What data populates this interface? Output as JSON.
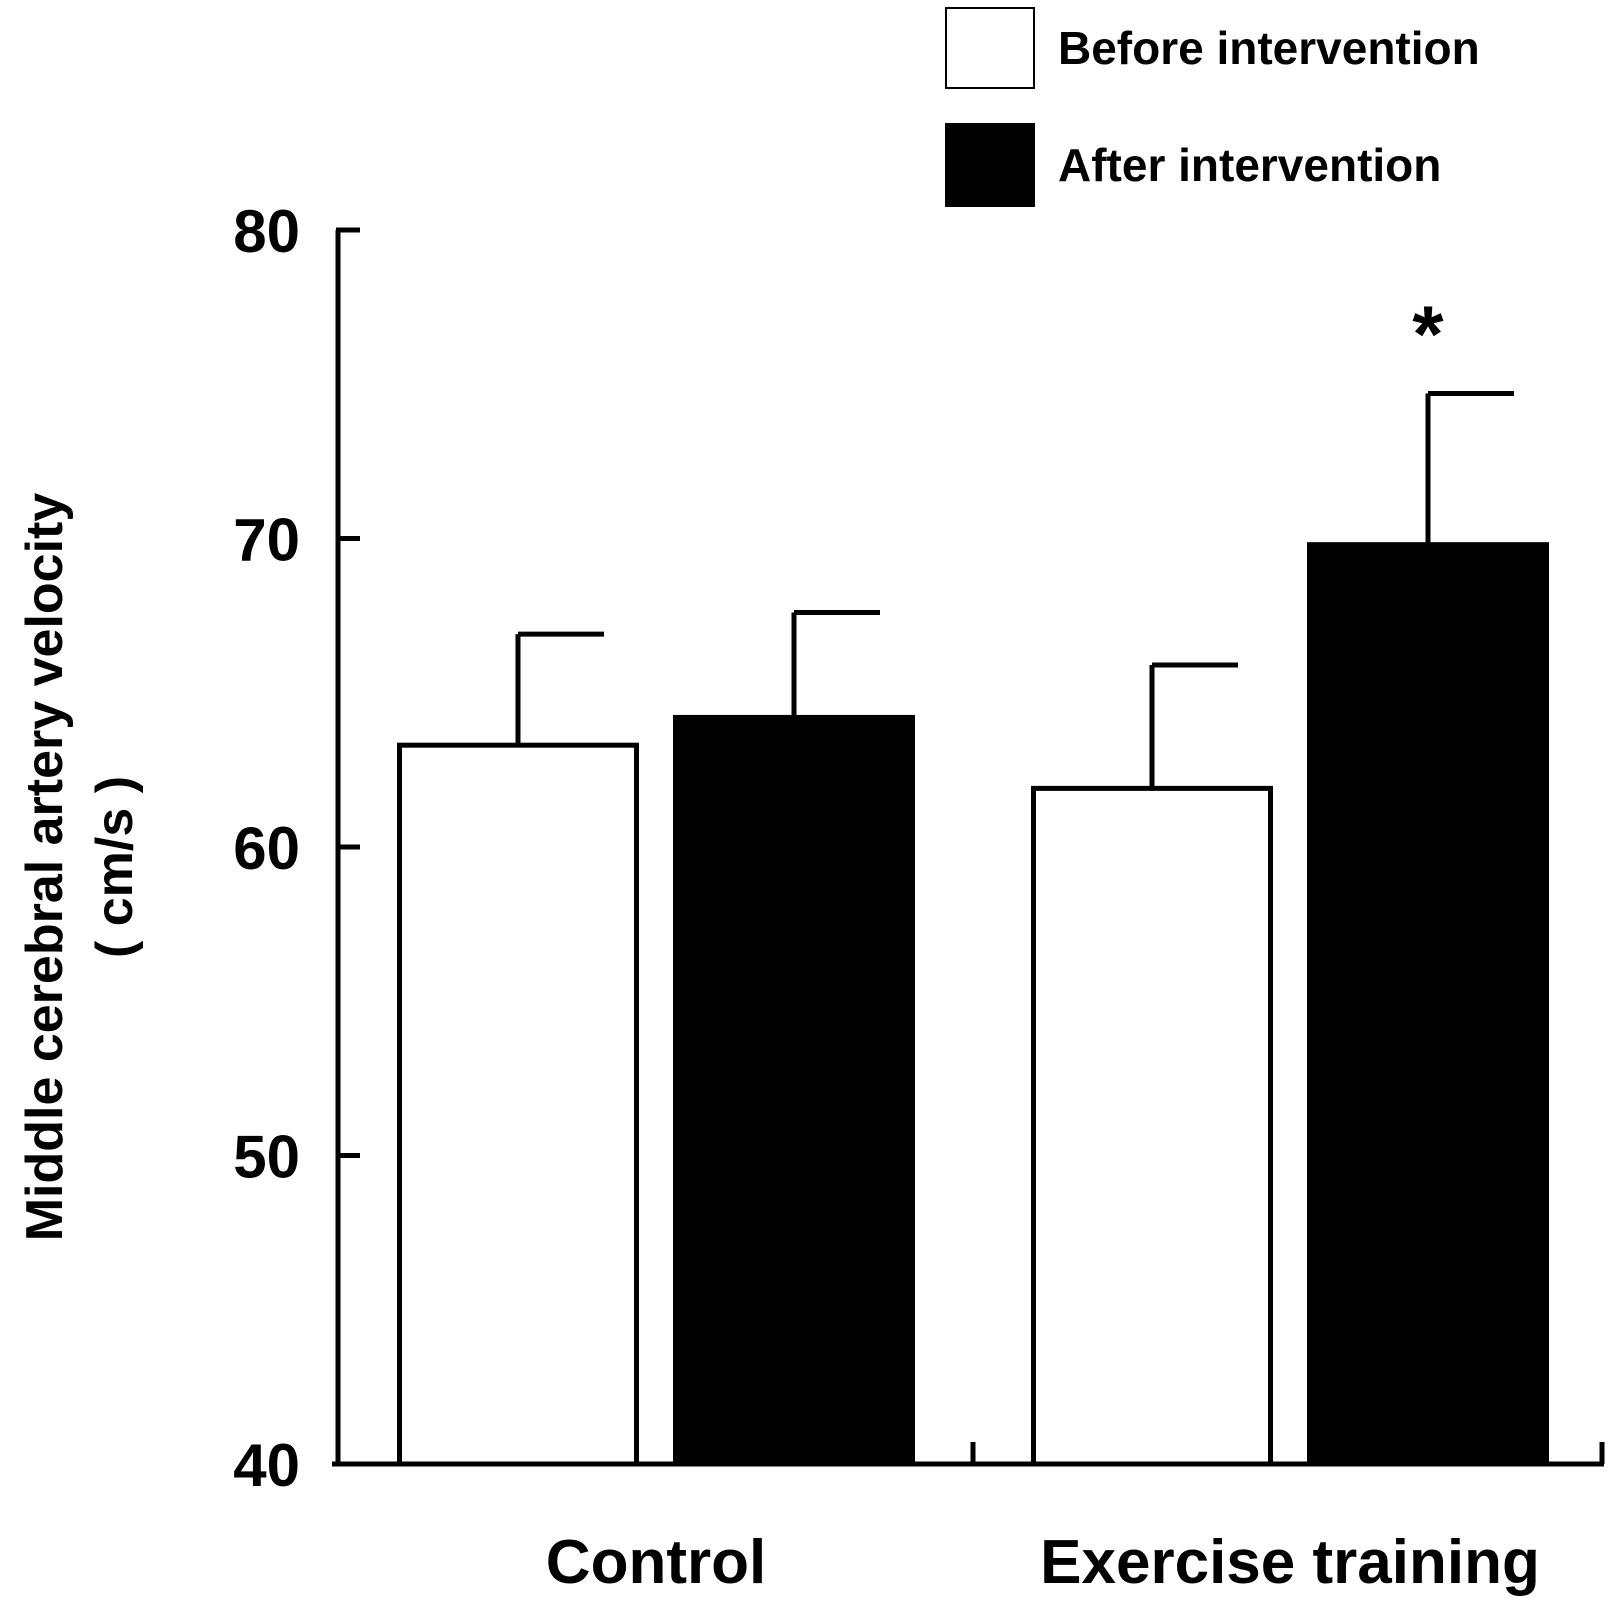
{
  "chart_data": {
    "type": "bar",
    "categories": [
      "Control",
      "Exercise training"
    ],
    "series": [
      {
        "name": "Before intervention",
        "values": [
          63.3,
          61.9
        ],
        "errors": [
          3.6,
          4.0
        ],
        "fill": "#ffffff"
      },
      {
        "name": "After intervention",
        "values": [
          64.2,
          69.8
        ],
        "errors": [
          3.4,
          4.9
        ],
        "fill": "#000000"
      }
    ],
    "annotations": [
      {
        "text": "*",
        "category_index": 1,
        "series_index": 1
      }
    ],
    "ylabel_lines": [
      "Middle cerebral artery velocity",
      "( cm/s )"
    ],
    "xlabel": "",
    "ylim": [
      40,
      80
    ],
    "yticks": [
      40,
      50,
      60,
      70,
      80
    ],
    "legend_position": "top-right",
    "grid": false
  }
}
